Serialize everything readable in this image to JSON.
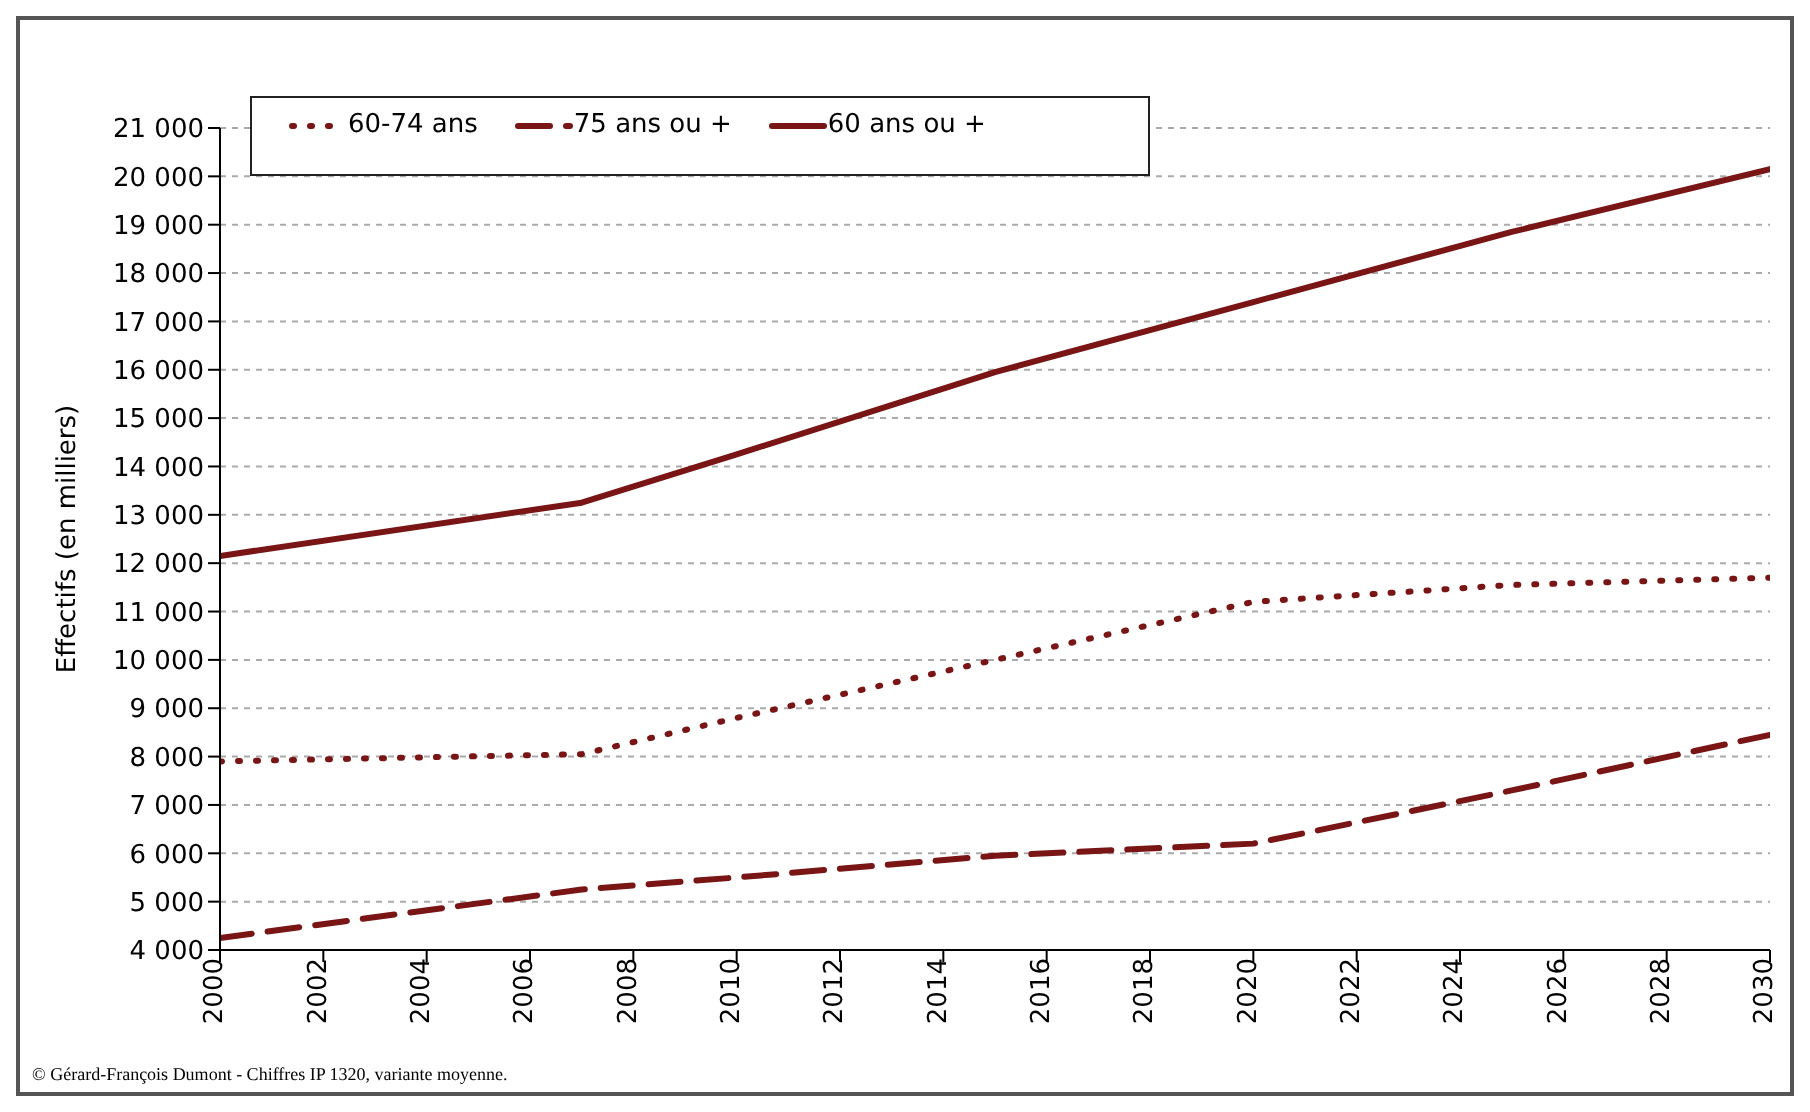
{
  "chart_data": {
    "type": "line",
    "ylabel": "Effectifs (en milliers)",
    "x": [
      2000,
      2007,
      2010,
      2015,
      2020,
      2025,
      2030
    ],
    "series": [
      {
        "name": "60-74 ans",
        "color": "#7a1515",
        "line_style": "dotted",
        "values": [
          7900,
          8050,
          8800,
          10000,
          11200,
          11550,
          11700
        ]
      },
      {
        "name": "75 ans ou +",
        "color": "#7a1515",
        "line_style": "dashed",
        "values": [
          4250,
          5250,
          5500,
          5950,
          6200,
          7300,
          8450
        ]
      },
      {
        "name": "60 ans ou +",
        "color": "#7a1515",
        "line_style": "solid",
        "values": [
          12150,
          13250,
          14250,
          15950,
          17400,
          18850,
          20150
        ]
      }
    ],
    "xlim": [
      2000,
      2030
    ],
    "xticks": [
      2000,
      2002,
      2004,
      2006,
      2008,
      2010,
      2012,
      2014,
      2016,
      2018,
      2020,
      2022,
      2024,
      2026,
      2028,
      2030
    ],
    "ylim": [
      4000,
      21000
    ],
    "yticks": [
      4000,
      5000,
      6000,
      7000,
      8000,
      9000,
      10000,
      11000,
      12000,
      13000,
      14000,
      15000,
      16000,
      17000,
      18000,
      19000,
      20000,
      21000
    ],
    "grid": "y",
    "legend": "top left",
    "marker": "none",
    "annotations": [
      "© Gérard-François Dumont - Chiffres  IP 1320, variante moyenne."
    ]
  }
}
